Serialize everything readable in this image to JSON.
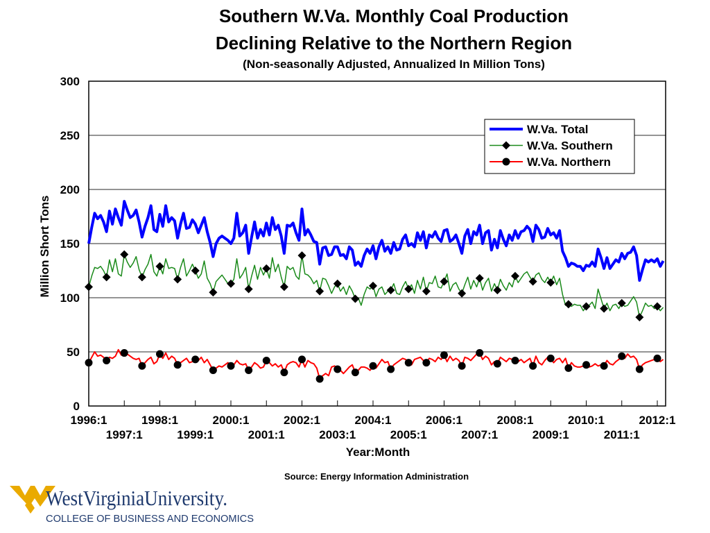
{
  "chart_data": {
    "type": "line",
    "title": "Southern W.Va. Monthly Coal Production",
    "title_line2": "Declining Relative to the Northern Region",
    "subtitle": "(Non-seasonally Adjusted, Annualized In Million Tons)",
    "xlabel": "Year:Month",
    "ylabel": "Million Short Tons",
    "ylim": [
      0,
      300
    ],
    "y_ticks": [
      "0",
      "50",
      "100",
      "150",
      "200",
      "250",
      "300"
    ],
    "x_start": "1996:1",
    "x_end": "2012:3",
    "x_tick_labels": [
      "1996:1",
      "1997:1",
      "1998:1",
      "1999:1",
      "2000:1",
      "2001:1",
      "2002:1",
      "2003:1",
      "2004:1",
      "2005:1",
      "2006:1",
      "2007:1",
      "2008:1",
      "2009:1",
      "2010:1",
      "2011:1",
      "2012:1"
    ],
    "grid": "horizontal",
    "legend_position": "top-right",
    "marker_interval_months": 6,
    "series": [
      {
        "name": "W.Va. Total",
        "color": "#0000ff",
        "marker": "none",
        "values": [
          150,
          165,
          178,
          173,
          176,
          170,
          161,
          180,
          168,
          182,
          174,
          167,
          189,
          181,
          174,
          176,
          181,
          170,
          156,
          166,
          174,
          185,
          163,
          161,
          177,
          166,
          185,
          170,
          174,
          171,
          155,
          168,
          178,
          164,
          165,
          172,
          168,
          160,
          167,
          174,
          161,
          151,
          138,
          150,
          155,
          157,
          155,
          153,
          150,
          155,
          178,
          157,
          160,
          167,
          141,
          156,
          170,
          155,
          163,
          157,
          169,
          158,
          174,
          163,
          167,
          157,
          141,
          167,
          166,
          169,
          160,
          153,
          182,
          158,
          163,
          158,
          152,
          151,
          131,
          146,
          147,
          139,
          140,
          147,
          147,
          139,
          140,
          136,
          147,
          144,
          130,
          133,
          129,
          139,
          145,
          141,
          148,
          136,
          147,
          153,
          143,
          147,
          141,
          151,
          144,
          145,
          154,
          158,
          148,
          150,
          147,
          160,
          153,
          161,
          146,
          158,
          156,
          161,
          155,
          152,
          162,
          163,
          152,
          154,
          158,
          150,
          141,
          157,
          163,
          150,
          161,
          158,
          167,
          150,
          160,
          162,
          144,
          154,
          146,
          162,
          154,
          148,
          158,
          153,
          162,
          155,
          161,
          162,
          166,
          163,
          152,
          167,
          163,
          155,
          156,
          164,
          158,
          160,
          155,
          162,
          143,
          137,
          129,
          132,
          131,
          129,
          129,
          125,
          130,
          129,
          133,
          129,
          145,
          137,
          127,
          137,
          127,
          131,
          135,
          133,
          141,
          136,
          141,
          142,
          147,
          139,
          116,
          126,
          135,
          133,
          135,
          133,
          136,
          129,
          134
        ]
      },
      {
        "name": "W.Va. Southern",
        "color": "#1a8a1a",
        "marker": "diamond",
        "values": [
          110,
          120,
          128,
          127,
          129,
          125,
          119,
          135,
          124,
          136,
          122,
          120,
          140,
          133,
          128,
          132,
          138,
          126,
          119,
          126,
          131,
          140,
          124,
          120,
          129,
          122,
          136,
          127,
          128,
          127,
          117,
          128,
          136,
          120,
          125,
          131,
          125,
          118,
          122,
          134,
          118,
          113,
          105,
          115,
          118,
          121,
          117,
          113,
          113,
          117,
          136,
          118,
          122,
          128,
          108,
          120,
          130,
          117,
          128,
          121,
          127,
          118,
          137,
          124,
          131,
          119,
          110,
          129,
          126,
          128,
          120,
          117,
          139,
          122,
          121,
          118,
          113,
          116,
          106,
          118,
          117,
          111,
          104,
          110,
          113,
          106,
          110,
          103,
          111,
          106,
          99,
          100,
          93,
          103,
          110,
          108,
          111,
          101,
          108,
          110,
          103,
          106,
          107,
          113,
          104,
          103,
          110,
          115,
          108,
          112,
          104,
          116,
          108,
          119,
          106,
          114,
          113,
          120,
          110,
          109,
          115,
          122,
          106,
          112,
          114,
          108,
          104,
          112,
          119,
          108,
          116,
          110,
          118,
          107,
          114,
          118,
          106,
          113,
          107,
          117,
          111,
          107,
          114,
          110,
          120,
          114,
          118,
          122,
          124,
          119,
          115,
          121,
          123,
          117,
          114,
          119,
          114,
          120,
          112,
          118,
          103,
          93,
          94,
          92,
          94,
          93,
          93,
          88,
          92,
          93,
          96,
          90,
          108,
          99,
          90,
          95,
          88,
          93,
          94,
          90,
          95,
          92,
          93,
          97,
          101,
          96,
          82,
          88,
          95,
          92,
          93,
          90,
          92,
          88,
          91
        ]
      },
      {
        "name": "W.Va. Northern",
        "color": "#ff0000",
        "marker": "circle",
        "values": [
          40,
          45,
          50,
          46,
          47,
          45,
          42,
          45,
          44,
          46,
          52,
          47,
          49,
          48,
          46,
          44,
          43,
          44,
          37,
          40,
          43,
          45,
          39,
          41,
          48,
          44,
          49,
          43,
          46,
          44,
          38,
          40,
          42,
          44,
          40,
          41,
          43,
          42,
          45,
          40,
          43,
          38,
          33,
          35,
          37,
          36,
          38,
          40,
          37,
          38,
          42,
          39,
          38,
          39,
          33,
          36,
          40,
          38,
          35,
          36,
          42,
          40,
          37,
          39,
          36,
          38,
          31,
          38,
          40,
          41,
          40,
          36,
          43,
          36,
          42,
          40,
          39,
          35,
          25,
          28,
          30,
          28,
          36,
          37,
          34,
          33,
          30,
          33,
          36,
          38,
          31,
          33,
          36,
          36,
          35,
          33,
          37,
          35,
          39,
          43,
          40,
          41,
          34,
          38,
          40,
          42,
          44,
          43,
          40,
          38,
          43,
          44,
          45,
          42,
          40,
          44,
          43,
          41,
          45,
          43,
          47,
          41,
          46,
          42,
          44,
          42,
          37,
          45,
          44,
          42,
          45,
          48,
          49,
          43,
          46,
          44,
          38,
          41,
          39,
          45,
          43,
          41,
          44,
          43,
          42,
          41,
          43,
          40,
          42,
          44,
          37,
          46,
          40,
          38,
          42,
          45,
          44,
          40,
          43,
          44,
          40,
          44,
          35,
          40,
          37,
          36,
          36,
          37,
          38,
          36,
          37,
          39,
          37,
          38,
          37,
          42,
          39,
          38,
          41,
          43,
          46,
          44,
          48,
          45,
          46,
          43,
          34,
          38,
          40,
          41,
          42,
          43,
          44,
          41,
          43
        ]
      }
    ],
    "source": "Source: Energy Information Administration"
  },
  "logo": {
    "name": "WestVirginiaUniversity.",
    "subtitle": "COLLEGE OF BUSINESS AND ECONOMICS",
    "gold": "#eaaa00",
    "navy": "#1f3a6e"
  }
}
